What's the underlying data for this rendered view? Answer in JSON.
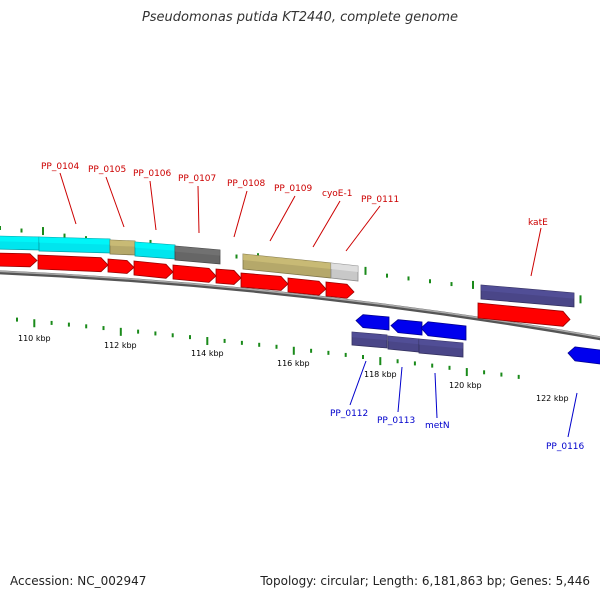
{
  "title": "Pseudomonas putida KT2440, complete genome",
  "accession": "Accession: NC_002947",
  "topology": "Topology: circular; Length: 6,181,863 bp; Genes: 5,446",
  "colors": {
    "top_label": "#cc0000",
    "bottom_label": "#0000cc",
    "backbone": "#888888",
    "tick": "#1a8a1a",
    "red_gene": "#ff0000",
    "blue_gene": "#0000ee",
    "cyan_gene": "#00e5ee",
    "olive_gene": "#b5a86a",
    "gray_gene": "#666666",
    "lightgray_gene": "#c8c8c8",
    "purple_gene": "#4a4688"
  },
  "scale_labels": [
    "110 kbp",
    "112 kbp",
    "114 kbp",
    "116 kbp",
    "118 kbp",
    "120 kbp",
    "122 kbp"
  ],
  "top_gene_labels": [
    "PP_0104",
    "PP_0105",
    "PP_0106",
    "PP_0107",
    "PP_0108",
    "PP_0109",
    "cyoE-1",
    "PP_0111",
    "katE"
  ],
  "bottom_gene_labels": [
    "PP_0112",
    "PP_0113",
    "metN",
    "PP_0116"
  ]
}
